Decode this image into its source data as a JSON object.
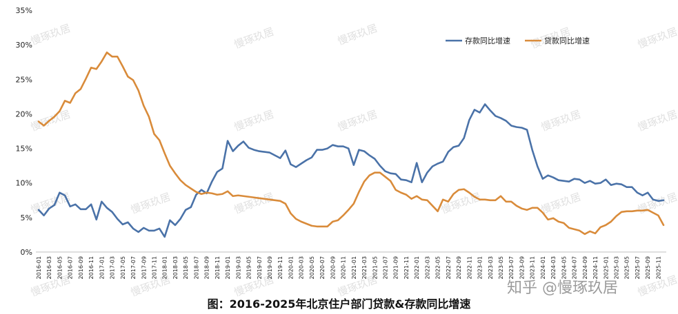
{
  "caption": "图：2016-2025年北京住户部门贷款&存款同比增速",
  "watermark": "慢琢玖居",
  "zhihu_watermark": "知乎 @慢琢玖居",
  "chart_data": {
    "type": "line",
    "title": "",
    "xlabel": "",
    "ylabel": "",
    "ylim": [
      0,
      35
    ],
    "yticks": [
      0,
      5,
      10,
      15,
      20,
      25,
      30,
      35
    ],
    "ytick_labels": [
      "0%",
      "5%",
      "10%",
      "15%",
      "20%",
      "25%",
      "30%",
      "35%"
    ],
    "legend_position": "top-right",
    "grid": false,
    "x": [
      "2016-01",
      "2016-02",
      "2016-03",
      "2016-04",
      "2016-05",
      "2016-06",
      "2016-07",
      "2016-08",
      "2016-09",
      "2016-10",
      "2016-11",
      "2016-12",
      "2017-01",
      "2017-02",
      "2017-03",
      "2017-04",
      "2017-05",
      "2017-06",
      "2017-07",
      "2017-08",
      "2017-09",
      "2017-10",
      "2017-11",
      "2017-12",
      "2018-01",
      "2018-02",
      "2018-03",
      "2018-04",
      "2018-05",
      "2018-06",
      "2018-07",
      "2018-08",
      "2018-09",
      "2018-10",
      "2018-11",
      "2018-12",
      "2019-01",
      "2019-02",
      "2019-03",
      "2019-04",
      "2019-05",
      "2019-06",
      "2019-07",
      "2019-08",
      "2019-09",
      "2019-10",
      "2019-11",
      "2019-12",
      "2020-01",
      "2020-02",
      "2020-03",
      "2020-04",
      "2020-05",
      "2020-06",
      "2020-07",
      "2020-08",
      "2020-09",
      "2020-10",
      "2020-11",
      "2020-12",
      "2021-01",
      "2021-02",
      "2021-03",
      "2021-04",
      "2021-05",
      "2021-06",
      "2021-07",
      "2021-08",
      "2021-09",
      "2021-10",
      "2021-11",
      "2021-12",
      "2022-01",
      "2022-02",
      "2022-03",
      "2022-04",
      "2022-05",
      "2022-06",
      "2022-07",
      "2022-08",
      "2022-09",
      "2022-10",
      "2022-11",
      "2022-12",
      "2023-01",
      "2023-02",
      "2023-03",
      "2023-04",
      "2023-05",
      "2023-06",
      "2023-07",
      "2023-08",
      "2023-09",
      "2023-10",
      "2023-11",
      "2023-12",
      "2024-01",
      "2024-02",
      "2024-03",
      "2024-04",
      "2024-05",
      "2024-06",
      "2024-07",
      "2024-08",
      "2024-09",
      "2024-10",
      "2024-11",
      "2024-12",
      "2025-01",
      "2025-02",
      "2025-03",
      "2025-04",
      "2025-05",
      "2025-06",
      "2025-07",
      "2025-08",
      "2025-09",
      "2025-10",
      "2025-11",
      "2025-12"
    ],
    "xtick_labels": [
      "2016-01",
      "2016-03",
      "2016-05",
      "2016-07",
      "2016-09",
      "2016-11",
      "2017-01",
      "2017-03",
      "2017-05",
      "2017-07",
      "2017-09",
      "2017-11",
      "2018-01",
      "2018-03",
      "2018-05",
      "2018-07",
      "2018-09",
      "2018-11",
      "2019-01",
      "2019-03",
      "2019-05",
      "2019-07",
      "2019-09",
      "2019-11",
      "2020-01",
      "2020-03",
      "2020-05",
      "2020-07",
      "2020-09",
      "2020-11",
      "2021-01",
      "2021-03",
      "2021-05",
      "2021-07",
      "2021-09",
      "2021-11",
      "2022-01",
      "2022-03",
      "2022-05",
      "2022-07",
      "2022-09",
      "2022-11",
      "2023-01",
      "2023-03",
      "2023-05",
      "2023-07",
      "2023-09",
      "2023-11",
      "2024-01",
      "2024-03",
      "2024-05",
      "2024-07",
      "2024-09",
      "2024-11",
      "2025-01",
      "2025-03",
      "2025-05",
      "2025-07",
      "2025-09",
      "2025-11"
    ],
    "series": [
      {
        "name": "存款同比增速",
        "color": "#4a72a8",
        "values": [
          6.1,
          5.3,
          6.3,
          6.8,
          8.6,
          8.2,
          6.6,
          6.9,
          6.2,
          6.2,
          6.9,
          4.7,
          7.3,
          6.4,
          5.8,
          4.8,
          4.0,
          4.3,
          3.4,
          2.9,
          3.5,
          3.1,
          3.1,
          3.4,
          2.2,
          4.6,
          3.9,
          4.8,
          6.1,
          6.5,
          8.3,
          9.0,
          8.5,
          10.2,
          11.6,
          12.1,
          16.1,
          14.6,
          15.4,
          16.0,
          15.1,
          14.8,
          14.6,
          14.5,
          14.4,
          14.0,
          13.6,
          14.7,
          12.7,
          12.3,
          12.8,
          13.3,
          13.7,
          14.8,
          14.8,
          15.0,
          15.5,
          15.3,
          15.3,
          15.0,
          12.6,
          14.8,
          14.6,
          14.0,
          13.5,
          12.5,
          11.7,
          11.4,
          11.3,
          10.5,
          10.4,
          10.1,
          12.9,
          10.1,
          11.5,
          12.4,
          12.8,
          13.1,
          14.5,
          15.2,
          15.4,
          16.5,
          19.1,
          20.6,
          20.2,
          21.4,
          20.5,
          19.7,
          19.4,
          19.0,
          18.3,
          18.1,
          18.0,
          17.7,
          14.8,
          12.4,
          10.6,
          11.1,
          10.8,
          10.4,
          10.3,
          10.2,
          10.6,
          10.5,
          10.0,
          10.3,
          9.9,
          10.0,
          10.5,
          9.7,
          9.9,
          9.8,
          9.4,
          9.4,
          8.6,
          8.2,
          8.6,
          7.6,
          7.4,
          7.5
        ]
      },
      {
        "name": "贷款同比增速",
        "color": "#d98b3a",
        "values": [
          18.9,
          18.3,
          19.0,
          19.6,
          20.4,
          21.9,
          21.6,
          23.0,
          23.6,
          25.1,
          26.7,
          26.5,
          27.6,
          28.9,
          28.3,
          28.3,
          26.9,
          25.4,
          24.9,
          23.4,
          21.2,
          19.6,
          17.1,
          16.2,
          14.3,
          12.5,
          11.4,
          10.4,
          9.7,
          9.2,
          8.7,
          8.4,
          8.6,
          8.5,
          8.3,
          8.4,
          8.8,
          8.1,
          8.2,
          8.1,
          8.0,
          7.9,
          7.8,
          7.7,
          7.6,
          7.5,
          7.4,
          7.0,
          5.6,
          4.8,
          4.4,
          4.1,
          3.8,
          3.7,
          3.7,
          3.7,
          4.4,
          4.6,
          5.3,
          6.1,
          7.0,
          8.7,
          10.2,
          11.1,
          11.5,
          11.5,
          10.9,
          10.3,
          9.0,
          8.6,
          8.3,
          7.7,
          8.1,
          7.6,
          7.5,
          6.7,
          5.9,
          7.6,
          7.3,
          8.4,
          9.0,
          9.1,
          8.6,
          8.0,
          7.6,
          7.6,
          7.5,
          7.5,
          8.1,
          7.3,
          7.3,
          6.7,
          6.3,
          6.1,
          6.4,
          6.4,
          5.7,
          4.7,
          4.9,
          4.4,
          4.2,
          3.5,
          3.3,
          3.1,
          2.6,
          3.0,
          2.7,
          3.6,
          3.9,
          4.4,
          5.2,
          5.8,
          5.9,
          5.9,
          6.0,
          6.0,
          6.1,
          5.7,
          5.3,
          3.9
        ]
      }
    ]
  }
}
